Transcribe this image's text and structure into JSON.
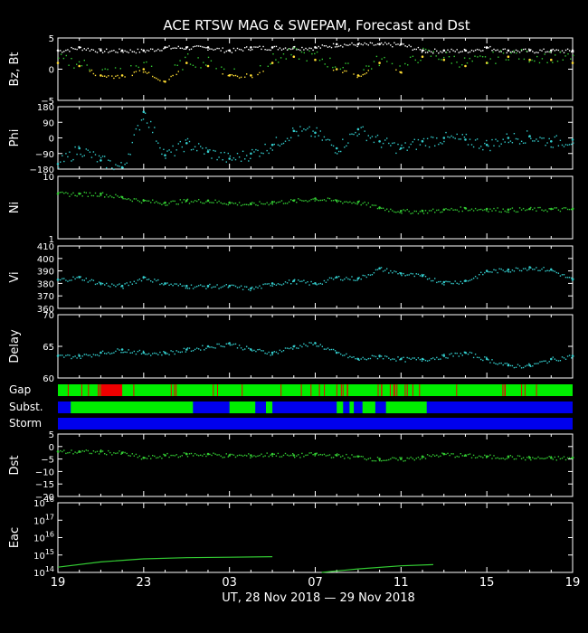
{
  "colors": {
    "background": "#000000",
    "frame": "#ffffff",
    "bt": "#ffffff",
    "bz": "#ffdd33",
    "bz_positive": "#33cc33",
    "phi": "#33cccc",
    "density": "#33cc33",
    "speed": "#33cccc",
    "delay": "#33cccc",
    "dst": "#33cc33",
    "eac": "#33cc33",
    "good": "#00ee00",
    "bad": "#ee0000",
    "blue": "#0000ee"
  },
  "title": "ACE RTSW MAG & SWEPAM, Forecast and Dst",
  "xaxis": {
    "label": "UT, 28 Nov 2018 — 29 Nov 2018",
    "ticks": [
      "19",
      "23",
      "03",
      "07",
      "11",
      "15",
      "19"
    ]
  },
  "chart_data": [
    {
      "type": "scatter",
      "ylabel": "Bz, Bt",
      "ylim": [
        -5,
        5
      ],
      "yticks": [
        "5",
        "0",
        "−5"
      ],
      "series": [
        {
          "name": "Bt",
          "x": [
            0,
            1,
            2,
            3,
            4,
            5,
            6,
            7,
            8,
            9,
            10,
            11,
            12,
            13,
            14,
            15,
            16,
            17,
            18,
            19,
            20,
            21,
            22,
            23,
            24
          ],
          "y": [
            3,
            3.5,
            3,
            3,
            3,
            3.5,
            3.5,
            3.5,
            3,
            3.5,
            3.5,
            3.5,
            3.5,
            4,
            4,
            4,
            4,
            3,
            3,
            3,
            3.5,
            3,
            3,
            3,
            3
          ]
        },
        {
          "name": "Bz",
          "x": [
            0,
            1,
            2,
            3,
            4,
            5,
            6,
            7,
            8,
            9,
            10,
            11,
            12,
            13,
            14,
            15,
            16,
            17,
            18,
            19,
            20,
            21,
            22,
            23,
            24
          ],
          "y": [
            1,
            0.5,
            -1,
            -1,
            0,
            -2,
            1,
            0.5,
            -1,
            -1,
            1,
            2,
            1.5,
            0,
            -1,
            1,
            -0.5,
            2,
            1.5,
            0.5,
            1,
            2,
            1.5,
            1.5,
            1
          ]
        }
      ]
    },
    {
      "type": "scatter",
      "ylabel": "Phi",
      "ylim": [
        -180,
        180
      ],
      "yticks": [
        "180",
        "90",
        "0",
        "−90",
        "−180"
      ],
      "series": [
        {
          "name": "Phi",
          "x": [
            0,
            1,
            2,
            3,
            4,
            5,
            6,
            7,
            8,
            9,
            10,
            11,
            12,
            13,
            14,
            15,
            16,
            17,
            18,
            19,
            20,
            21,
            22,
            23,
            24
          ],
          "y": [
            -150,
            -60,
            -130,
            -170,
            150,
            -100,
            -30,
            -80,
            -120,
            -90,
            -40,
            40,
            30,
            -60,
            50,
            -20,
            -60,
            -20,
            0,
            -10,
            -40,
            0,
            10,
            -20,
            -10
          ]
        }
      ]
    },
    {
      "type": "scatter",
      "ylabel": "Ni",
      "ylim": [
        1,
        10
      ],
      "yticks": [
        "10",
        "1"
      ],
      "series": [
        {
          "name": "Ni",
          "x": [
            0,
            1,
            2,
            3,
            4,
            5,
            6,
            7,
            8,
            9,
            10,
            11,
            12,
            13,
            14,
            15,
            16,
            17,
            18,
            19,
            20,
            21,
            22,
            23,
            24
          ],
          "y": [
            7.5,
            7.5,
            7.5,
            7,
            6.5,
            6.2,
            6.5,
            6.5,
            6.2,
            6,
            6.3,
            6.5,
            6.8,
            6.5,
            6.3,
            5.5,
            5,
            5,
            5.2,
            5.4,
            5.3,
            5.2,
            5.3,
            5.3,
            5.3
          ]
        }
      ]
    },
    {
      "type": "scatter",
      "ylabel": "Vi",
      "ylim": [
        360,
        410
      ],
      "yticks": [
        "410",
        "400",
        "390",
        "380",
        "370",
        "360"
      ],
      "series": [
        {
          "name": "Vi",
          "x": [
            0,
            1,
            2,
            3,
            4,
            5,
            6,
            7,
            8,
            9,
            10,
            11,
            12,
            13,
            14,
            15,
            16,
            17,
            18,
            19,
            20,
            21,
            22,
            23,
            24
          ],
          "y": [
            383,
            385,
            380,
            378,
            385,
            380,
            378,
            378,
            378,
            376,
            380,
            382,
            380,
            385,
            384,
            392,
            388,
            386,
            381,
            382,
            390,
            391,
            393,
            391,
            383
          ]
        }
      ]
    },
    {
      "type": "scatter",
      "ylabel": "Delay",
      "ylim": [
        60,
        70
      ],
      "yticks": [
        "70",
        "65",
        "60"
      ],
      "series": [
        {
          "name": "Delay",
          "x": [
            0,
            1,
            2,
            3,
            4,
            5,
            6,
            7,
            8,
            9,
            10,
            11,
            12,
            13,
            14,
            15,
            16,
            17,
            18,
            19,
            20,
            21,
            22,
            23,
            24
          ],
          "y": [
            63.5,
            63.5,
            64,
            64.5,
            64,
            64,
            64.5,
            65,
            65.5,
            64.5,
            64,
            65,
            65.5,
            64,
            63,
            63.5,
            63,
            63,
            63.5,
            64,
            63,
            62,
            62,
            63,
            63.5
          ]
        }
      ]
    },
    {
      "type": "table",
      "label": "Gap",
      "bad_segments": [
        [
          2.0,
          3.0
        ]
      ]
    },
    {
      "type": "table",
      "label": "Subst.",
      "green_segments": [
        [
          0.6,
          6.3
        ],
        [
          8.0,
          9.2
        ],
        [
          9.7,
          10.0
        ],
        [
          13.0,
          13.3
        ],
        [
          13.6,
          13.8
        ],
        [
          14.2,
          14.8
        ],
        [
          15.3,
          17.2
        ]
      ]
    },
    {
      "type": "table",
      "label": "Storm",
      "blue_segments": [
        [
          0,
          24
        ]
      ]
    },
    {
      "type": "scatter",
      "ylabel": "Dst",
      "ylim": [
        -20,
        5
      ],
      "yticks": [
        "5",
        "0",
        "−5",
        "−10",
        "−15",
        "−20"
      ],
      "series": [
        {
          "name": "Dst",
          "x": [
            0,
            1,
            2,
            3,
            4,
            5,
            6,
            7,
            8,
            9,
            10,
            11,
            12,
            13,
            14,
            15,
            16,
            17,
            18,
            19,
            20,
            21,
            22,
            23,
            24
          ],
          "y": [
            -2,
            -2,
            -2,
            -2.5,
            -4.5,
            -3.5,
            -3,
            -3,
            -3.5,
            -3.5,
            -3,
            -3.5,
            -3,
            -3.5,
            -4,
            -5,
            -5,
            -4,
            -3,
            -3.5,
            -4,
            -4,
            -4.5,
            -4.5,
            -4.5
          ]
        }
      ]
    },
    {
      "type": "line",
      "ylabel": "Eac",
      "ylog": true,
      "ylim": [
        100000000000000.0,
        1e+18
      ],
      "yticks": [
        "10",
        "10",
        "10",
        "10",
        "10"
      ],
      "ytick_exponents": [
        "18",
        "17",
        "16",
        "15",
        "14"
      ],
      "series": [
        {
          "name": "Eac1",
          "x": [
            0,
            2,
            4,
            6,
            8,
            10
          ],
          "y": [
            200000000000000.0,
            400000000000000.0,
            600000000000000.0,
            700000000000000.0,
            750000000000000.0,
            800000000000000.0
          ]
        },
        {
          "name": "Eac2",
          "x": [
            12.3,
            14,
            16,
            17.5
          ],
          "y": [
            100000000000000.0,
            160000000000000.0,
            240000000000000.0,
            280000000000000.0
          ]
        }
      ]
    }
  ]
}
